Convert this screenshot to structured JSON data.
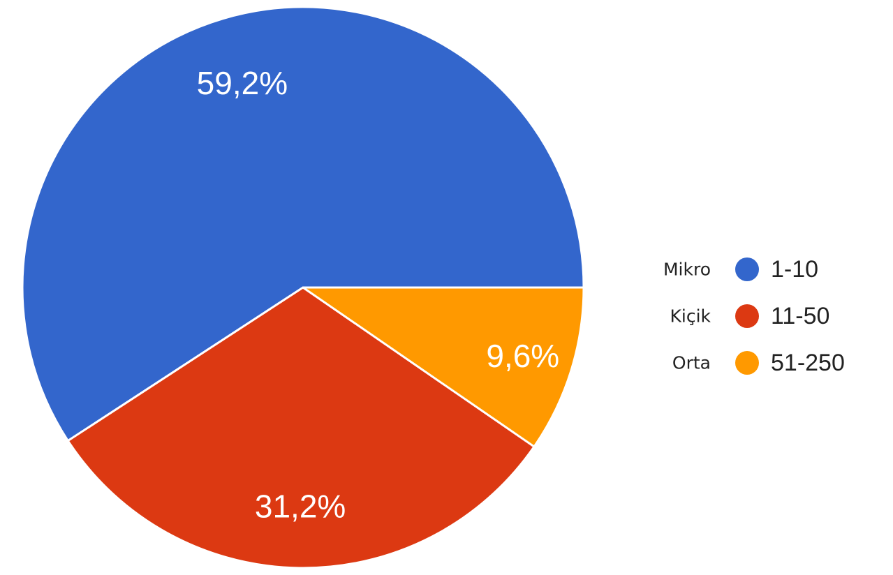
{
  "chart_data": {
    "type": "pie",
    "title": "",
    "start_angle_deg": 0,
    "direction": "counterclockwise",
    "slices": [
      {
        "label": "1-10",
        "legend_prefix": "Mikro",
        "value": 59.2,
        "value_label": "59,2%",
        "color": "#3366cc"
      },
      {
        "label": "11-50",
        "legend_prefix": "Kiçik",
        "value": 31.2,
        "value_label": "31,2%",
        "color": "#dc3912"
      },
      {
        "label": "51-250",
        "legend_prefix": "Orta",
        "value": 9.6,
        "value_label": "9,6%",
        "color": "#ff9900"
      }
    ],
    "legend_position": "right"
  }
}
